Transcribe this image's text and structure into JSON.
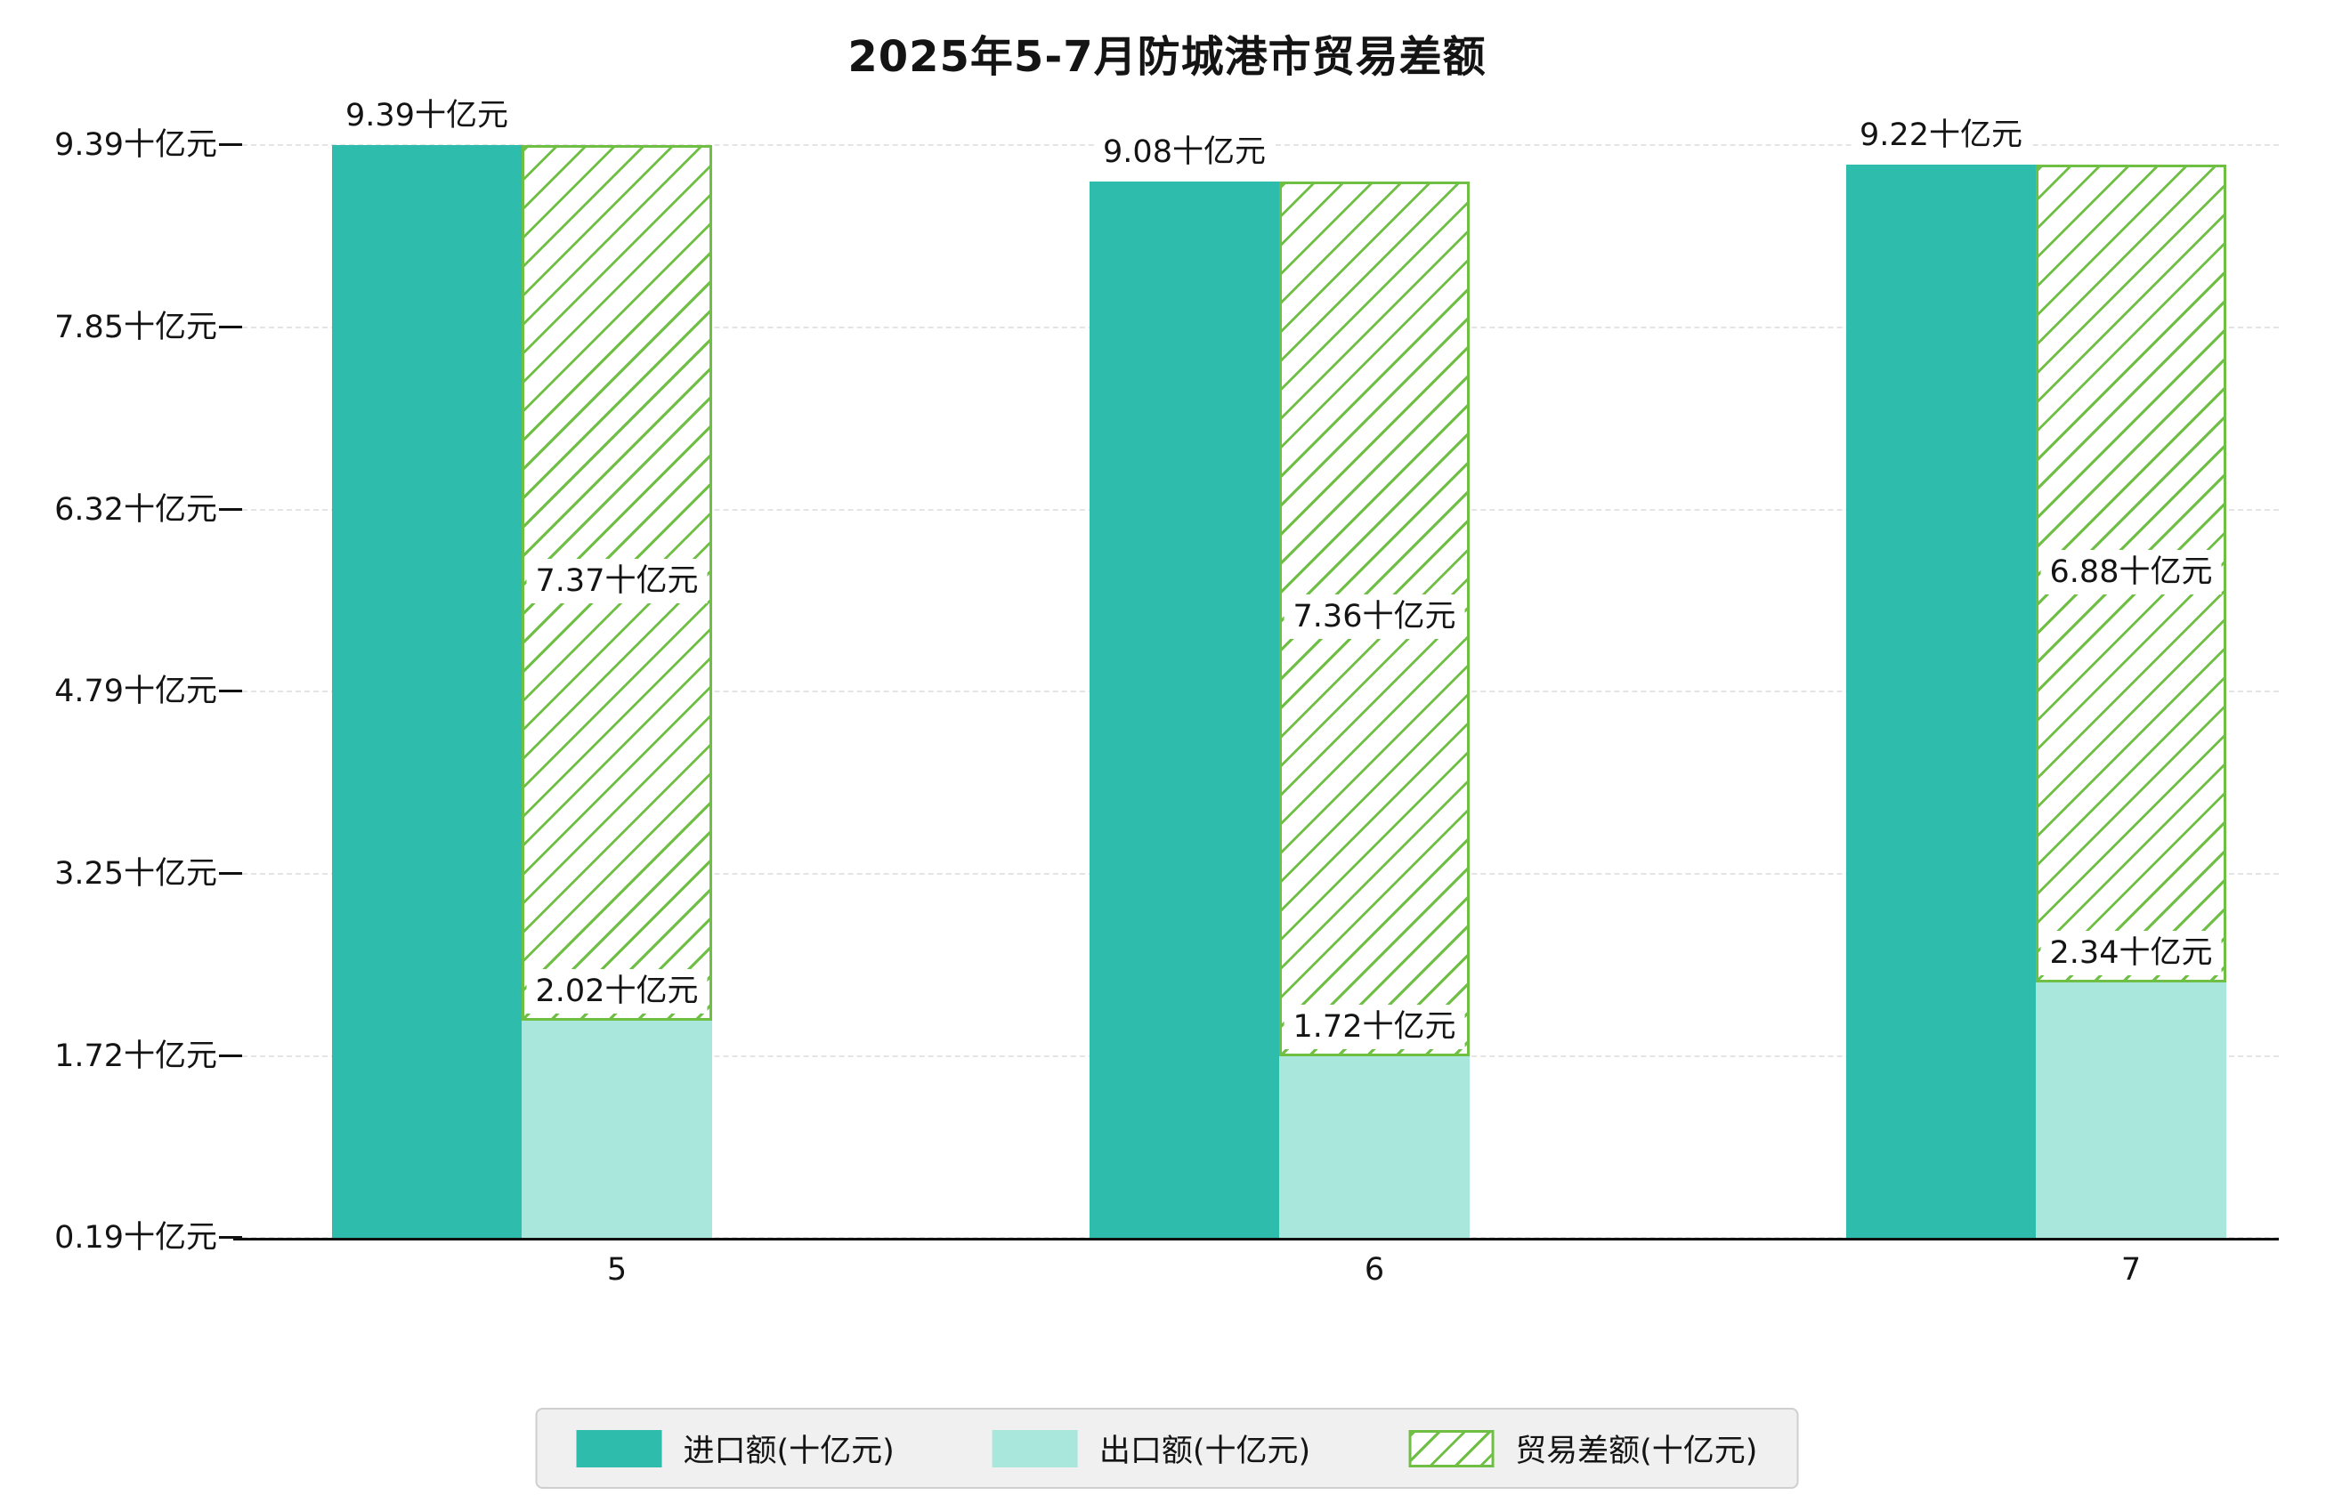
{
  "chart_data": {
    "type": "bar",
    "title": "2025年5-7月防城港市贸易差额",
    "categories": [
      "5",
      "6",
      "7"
    ],
    "series": [
      {
        "id": "import",
        "name": "进口额(十亿元)",
        "color": "#2ebcac",
        "hatch": false,
        "values": [
          9.39,
          9.08,
          9.22
        ],
        "labels": [
          "9.39十亿元",
          "9.08十亿元",
          "9.22十亿元"
        ]
      },
      {
        "id": "export",
        "name": "出口额(十亿元)",
        "color": "#a9e6db",
        "hatch": false,
        "values": [
          2.02,
          1.72,
          2.34
        ],
        "labels": [
          "2.02十亿元",
          "1.72十亿元",
          "2.34十亿元"
        ]
      },
      {
        "id": "trade_diff",
        "name": "贸易差额(十亿元)",
        "color": "#6fbf45",
        "hatch": true,
        "floats_on": "export",
        "values": [
          7.37,
          7.36,
          6.88
        ],
        "labels": [
          "7.37十亿元",
          "7.36十亿元",
          "6.88十亿元"
        ]
      }
    ],
    "y_axis": {
      "tick_values": [
        0.19,
        1.72,
        3.25,
        4.79,
        6.32,
        7.85,
        9.39
      ],
      "tick_labels": [
        "0.19十亿元",
        "1.72十亿元",
        "3.25十亿元",
        "4.79十亿元",
        "6.32十亿元",
        "7.85十亿元",
        "9.39十亿元"
      ]
    },
    "x_axis": {
      "tick_labels": [
        "5",
        "6",
        "7"
      ]
    },
    "ylim": [
      0.19,
      9.39
    ],
    "grid": "horizontal-dashed",
    "legend_position": "bottom-center"
  },
  "colors": {
    "import": "#2ebcac",
    "export": "#a9e6db",
    "trade_diff": "#6fbf45",
    "grid": "#e4e4e4",
    "axis": "#111111",
    "legend_bg": "#f0f0f0",
    "legend_border": "#cfcfcf"
  }
}
